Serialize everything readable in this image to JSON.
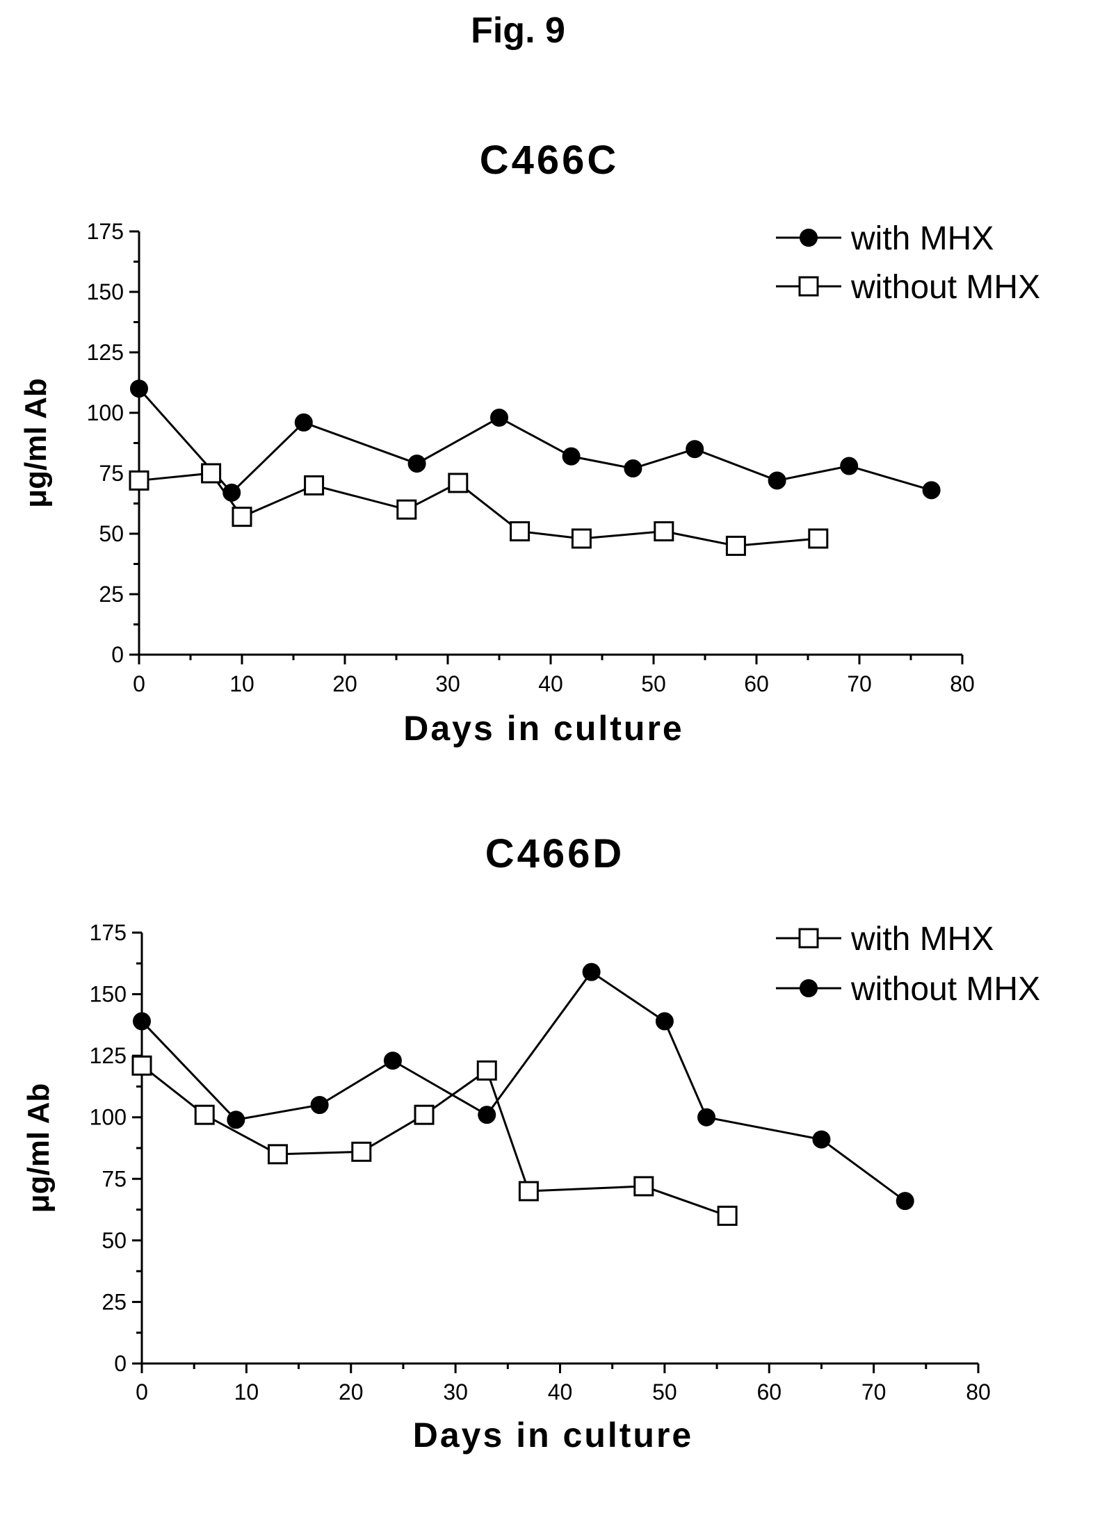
{
  "figure": {
    "title": "Fig. 9"
  },
  "chart_data": [
    {
      "type": "line",
      "title": "C466C",
      "xlabel": "Days in culture",
      "ylabel": "μg/ml Ab",
      "xlim": [
        0,
        80
      ],
      "ylim": [
        0,
        175
      ],
      "xticks": [
        0,
        10,
        20,
        30,
        40,
        50,
        60,
        70,
        80
      ],
      "yticks": [
        0,
        25,
        50,
        75,
        100,
        125,
        150,
        175
      ],
      "grid": false,
      "legend_position": "top-right",
      "series": [
        {
          "name": "with MHX",
          "marker": "filled-circle",
          "x": [
            0,
            9,
            16,
            27,
            35,
            42,
            48,
            54,
            62,
            69,
            77
          ],
          "y": [
            110,
            67,
            96,
            79,
            98,
            82,
            77,
            85,
            72,
            78,
            68
          ]
        },
        {
          "name": "without MHX",
          "marker": "open-square",
          "x": [
            0,
            7,
            10,
            17,
            26,
            31,
            37,
            43,
            51,
            58,
            66
          ],
          "y": [
            72,
            75,
            57,
            70,
            60,
            71,
            51,
            48,
            51,
            45,
            48
          ]
        }
      ]
    },
    {
      "type": "line",
      "title": "C466D",
      "xlabel": "Days in culture",
      "ylabel": "μg/ml Ab",
      "xlim": [
        0,
        80
      ],
      "ylim": [
        0,
        175
      ],
      "xticks": [
        0,
        10,
        20,
        30,
        40,
        50,
        60,
        70,
        80
      ],
      "yticks": [
        0,
        25,
        50,
        75,
        100,
        125,
        150,
        175
      ],
      "grid": false,
      "legend_position": "top-right",
      "series": [
        {
          "name": "with MHX",
          "marker": "open-square",
          "x": [
            0,
            6,
            13,
            21,
            27,
            33,
            37,
            48,
            56
          ],
          "y": [
            121,
            101,
            85,
            86,
            101,
            119,
            70,
            72,
            60
          ]
        },
        {
          "name": "without MHX",
          "marker": "filled-circle",
          "x": [
            0,
            9,
            17,
            24,
            33,
            43,
            50,
            54,
            65,
            73
          ],
          "y": [
            139,
            99,
            105,
            123,
            101,
            159,
            139,
            100,
            91,
            66
          ]
        }
      ]
    }
  ]
}
